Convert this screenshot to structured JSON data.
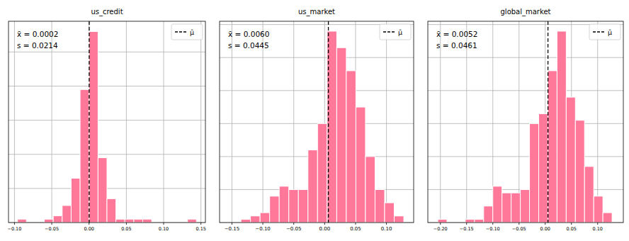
{
  "chart_data": [
    {
      "type": "histogram",
      "title": "us_credit",
      "bins": [
        -0.096,
        -0.084,
        -0.072,
        -0.06,
        -0.048,
        -0.036,
        -0.024,
        -0.012,
        0.0,
        0.012,
        0.024,
        0.036,
        0.048,
        0.06,
        0.072,
        0.084,
        0.096,
        0.108,
        0.12,
        0.132,
        0.144
      ],
      "values": [
        1,
        0,
        0,
        1,
        2,
        5,
        13,
        39,
        56,
        19,
        7,
        1,
        1,
        1,
        1,
        0,
        0,
        0,
        0,
        1
      ],
      "color": "#ff7799",
      "series": [
        {
          "name": "μ̂",
          "type": "vline",
          "values": [
            0.0002
          ],
          "line_style": "dashed",
          "color": "#000000"
        }
      ],
      "annotations": [
        "x̄ = 0.0002",
        "s = 0.0214"
      ],
      "xlim": [
        -0.108,
        0.156
      ],
      "xticks": [
        {
          "value": -0.1,
          "label": "−0.10"
        },
        {
          "value": -0.05,
          "label": "−0.05"
        },
        {
          "value": 0,
          "label": "0.00"
        },
        {
          "value": 0.05,
          "label": "0.05"
        },
        {
          "value": 0.1,
          "label": "0.10"
        },
        {
          "value": 0.15,
          "label": "0.15"
        }
      ],
      "ylim": [
        0,
        59
      ],
      "yticks": [
        0,
        10,
        20,
        30,
        40,
        50
      ],
      "grid": true,
      "legend": "upper right",
      "tick_labels": "x"
    },
    {
      "type": "histogram",
      "title": "us_market",
      "bins": [
        -0.1355,
        -0.12,
        -0.1045,
        -0.089,
        -0.0735,
        -0.058,
        -0.0425,
        -0.027,
        -0.0115,
        0.004,
        0.0195,
        0.035,
        0.0505,
        0.066,
        0.0815,
        0.097,
        0.1125,
        0.128
      ],
      "values": [
        1,
        2,
        3,
        8,
        11,
        10,
        10,
        22,
        30,
        58,
        53,
        46,
        35,
        20,
        10,
        6,
        2
      ],
      "color": "#ff7799",
      "series": [
        {
          "name": "μ̂",
          "type": "vline",
          "values": [
            0.006
          ],
          "line_style": "dashed",
          "color": "#000000"
        }
      ],
      "annotations": [
        "x̄ = 0.0060",
        "s = 0.0445"
      ],
      "xlim": [
        -0.17,
        0.144
      ],
      "xticks": [
        {
          "value": -0.15,
          "label": "−0.15"
        },
        {
          "value": -0.1,
          "label": "−0.10"
        },
        {
          "value": -0.05,
          "label": "−0.05"
        },
        {
          "value": 0,
          "label": "0.00"
        },
        {
          "value": 0.05,
          "label": "0.05"
        },
        {
          "value": 0.1,
          "label": "0.10"
        }
      ],
      "ylim": [
        0,
        61
      ],
      "yticks": [
        0,
        10,
        20,
        30,
        40,
        50,
        60
      ],
      "grid": true,
      "legend": "upper right",
      "tick_labels": "x"
    },
    {
      "type": "histogram",
      "title": "global_market",
      "bins": [
        -0.205,
        -0.1875,
        -0.17,
        -0.1525,
        -0.135,
        -0.1175,
        -0.1,
        -0.0825,
        -0.065,
        -0.0475,
        -0.03,
        -0.0125,
        0.005,
        0.0225,
        0.04,
        0.0575,
        0.075,
        0.0925,
        0.11,
        0.1275
      ],
      "values": [
        1,
        0,
        0,
        1,
        1,
        5,
        11,
        9,
        9,
        10,
        30,
        33,
        46,
        58,
        38,
        31,
        17,
        8,
        3
      ],
      "color": "#ff7799",
      "series": [
        {
          "name": "μ̂",
          "type": "vline",
          "values": [
            0.0052
          ],
          "line_style": "dashed",
          "color": "#000000"
        }
      ],
      "annotations": [
        "x̄ = 0.0052",
        "s = 0.0461"
      ],
      "xlim": [
        -0.224,
        0.149
      ],
      "xticks": [
        {
          "value": -0.2,
          "label": "−0.20"
        },
        {
          "value": -0.15,
          "label": "−0.15"
        },
        {
          "value": -0.1,
          "label": "−0.10"
        },
        {
          "value": -0.05,
          "label": "−0.05"
        },
        {
          "value": 0,
          "label": "0.00"
        },
        {
          "value": 0.05,
          "label": "0.05"
        },
        {
          "value": 0.1,
          "label": "0.10"
        }
      ],
      "ylim": [
        0,
        61
      ],
      "yticks": [
        0,
        10,
        20,
        30,
        40,
        50,
        60
      ],
      "grid": true,
      "legend": "upper right",
      "tick_labels": "x"
    }
  ]
}
